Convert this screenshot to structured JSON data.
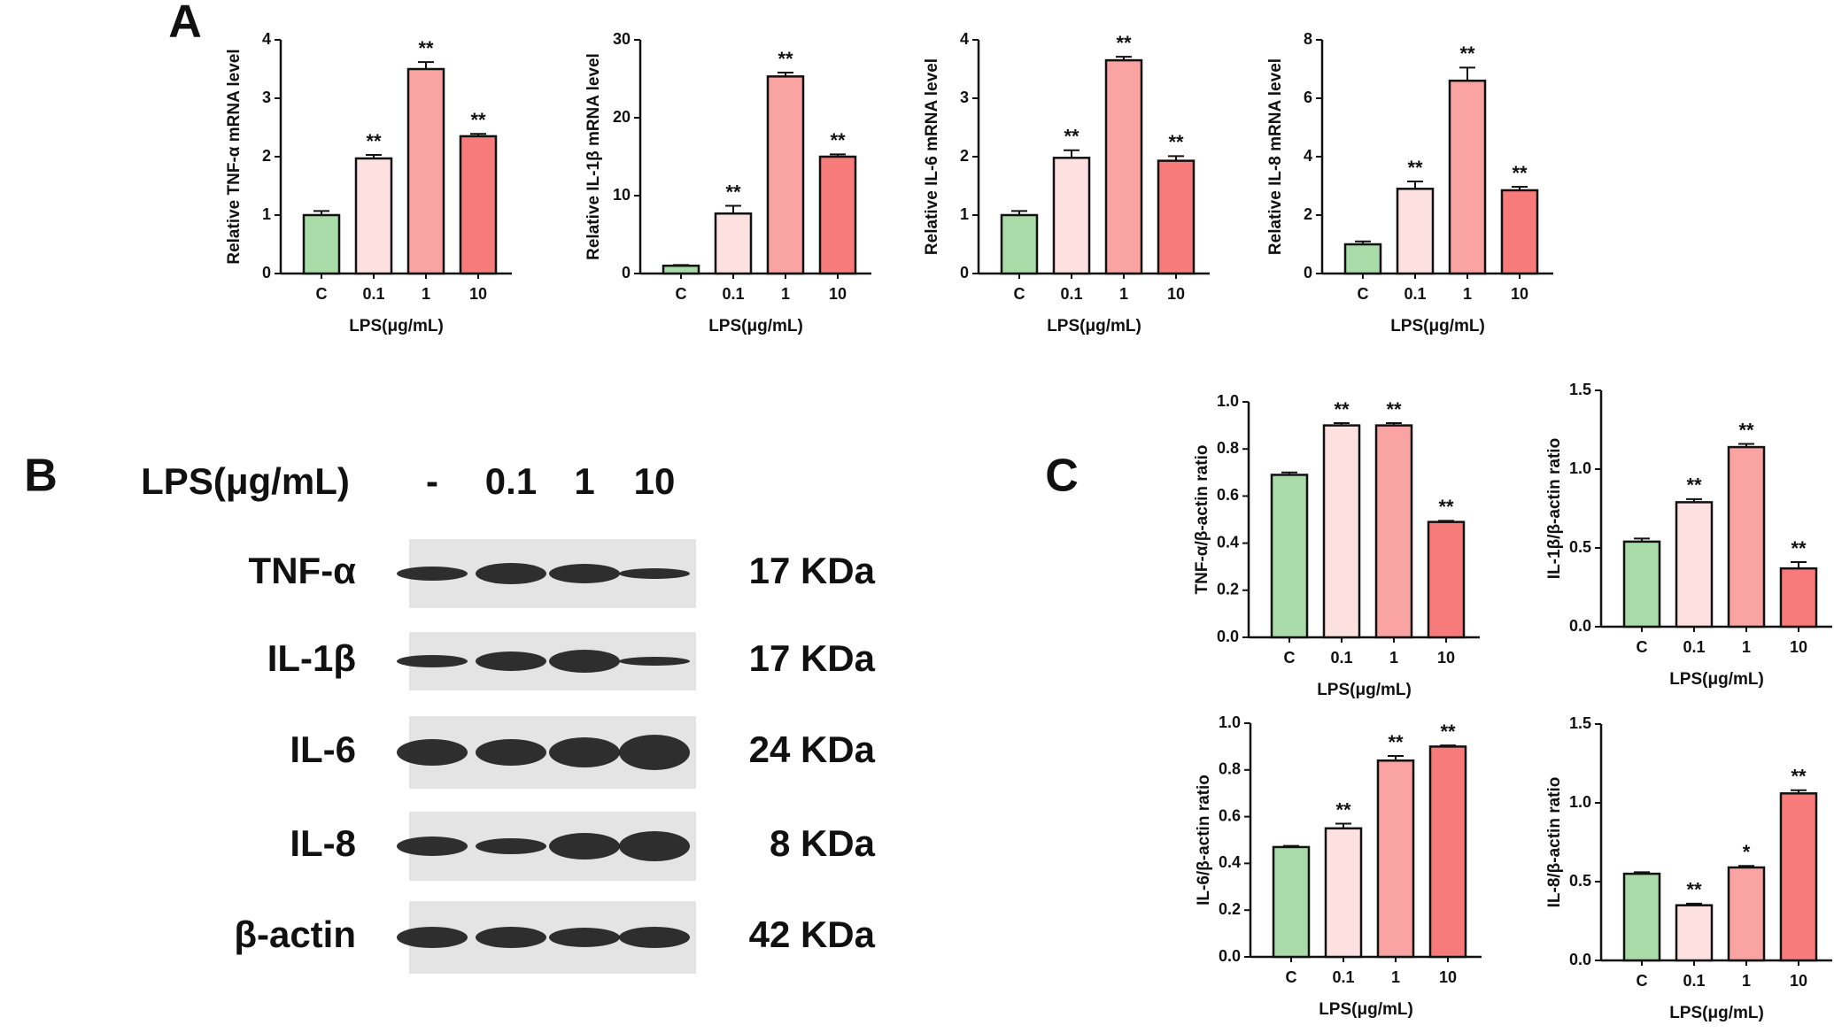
{
  "panels": [
    "A",
    "B",
    "C"
  ],
  "blot": {
    "lps_label": "LPS(μg/mL)",
    "lanes": [
      "-",
      "0.1",
      "1",
      "10"
    ],
    "rows": [
      {
        "protein": "TNF-α",
        "size": "17 KDa"
      },
      {
        "protein": "IL-1β",
        "size": "17 KDa"
      },
      {
        "protein": "IL-6",
        "size": "24 KDa"
      },
      {
        "protein": "IL-8",
        "size": "8 KDa"
      },
      {
        "protein": "β-actin",
        "size": "42 KDa"
      }
    ]
  },
  "chart_data": [
    {
      "type": "bar",
      "ylabel": "Relative TNF-α mRNA level",
      "xlabel": "LPS(μg/mL)",
      "categories": [
        "C",
        "0.1",
        "1",
        "10"
      ],
      "values": [
        1.0,
        1.97,
        3.5,
        2.35
      ],
      "errors": [
        0.07,
        0.06,
        0.12,
        0.04
      ],
      "annotations": [
        null,
        "**",
        "**",
        "**"
      ],
      "colors": [
        "#a8dba8",
        "#fde0e0",
        "#f9a3a3",
        "#f77b7b"
      ],
      "ylim": [
        0,
        4
      ],
      "yticks": [
        0,
        1,
        2,
        3,
        4
      ]
    },
    {
      "type": "bar",
      "ylabel": "Relative IL-1β mRNA level",
      "xlabel": "LPS(μg/mL)",
      "categories": [
        "C",
        "0.1",
        "1",
        "10"
      ],
      "values": [
        1.0,
        7.7,
        25.3,
        15.0
      ],
      "errors": [
        0.1,
        1.0,
        0.5,
        0.3
      ],
      "annotations": [
        null,
        "**",
        "**",
        "**"
      ],
      "colors": [
        "#a8dba8",
        "#fde0e0",
        "#f9a3a3",
        "#f77b7b"
      ],
      "ylim": [
        0,
        30
      ],
      "yticks": [
        0,
        10,
        20,
        30
      ]
    },
    {
      "type": "bar",
      "ylabel": "Relative IL-6 mRNA level",
      "xlabel": "LPS(μg/mL)",
      "categories": [
        "C",
        "0.1",
        "1",
        "10"
      ],
      "values": [
        1.0,
        1.98,
        3.65,
        1.93
      ],
      "errors": [
        0.07,
        0.13,
        0.06,
        0.08
      ],
      "annotations": [
        null,
        "**",
        "**",
        "**"
      ],
      "colors": [
        "#a8dba8",
        "#fde0e0",
        "#f9a3a3",
        "#f77b7b"
      ],
      "ylim": [
        0,
        4
      ],
      "yticks": [
        0,
        1,
        2,
        3,
        4
      ]
    },
    {
      "type": "bar",
      "ylabel": "Relative IL-8 mRNA level",
      "xlabel": "LPS(μg/mL)",
      "categories": [
        "C",
        "0.1",
        "1",
        "10"
      ],
      "values": [
        1.0,
        2.9,
        6.6,
        2.85
      ],
      "errors": [
        0.1,
        0.25,
        0.45,
        0.12
      ],
      "annotations": [
        null,
        "**",
        "**",
        "**"
      ],
      "colors": [
        "#a8dba8",
        "#fde0e0",
        "#f9a3a3",
        "#f77b7b"
      ],
      "ylim": [
        0,
        8
      ],
      "yticks": [
        0,
        2,
        4,
        6,
        8
      ]
    },
    {
      "type": "bar",
      "ylabel": "TNF-α/β-actin ratio",
      "xlabel": "LPS(μg/mL)",
      "categories": [
        "C",
        "0.1",
        "1",
        "10"
      ],
      "values": [
        0.69,
        0.9,
        0.9,
        0.49
      ],
      "errors": [
        0.01,
        0.01,
        0.01,
        0.005
      ],
      "annotations": [
        null,
        "**",
        "**",
        "**"
      ],
      "colors": [
        "#a8dba8",
        "#fde0e0",
        "#f9a3a3",
        "#f77b7b"
      ],
      "ylim": [
        0,
        1
      ],
      "yticks": [
        {
          "value": 0,
          "label": "0.0"
        },
        0.2,
        0.4,
        0.6,
        0.8,
        {
          "value": 1,
          "label": "1.0"
        }
      ]
    },
    {
      "type": "bar",
      "ylabel": "IL-1β/β-actin ratio",
      "xlabel": "LPS(μg/mL)",
      "categories": [
        "C",
        "0.1",
        "1",
        "10"
      ],
      "values": [
        0.54,
        0.79,
        1.14,
        0.37
      ],
      "errors": [
        0.02,
        0.02,
        0.02,
        0.04
      ],
      "annotations": [
        null,
        "**",
        "**",
        "**"
      ],
      "colors": [
        "#a8dba8",
        "#fde0e0",
        "#f9a3a3",
        "#f77b7b"
      ],
      "ylim": [
        0,
        1.5
      ],
      "yticks": [
        {
          "value": 0,
          "label": "0.0"
        },
        0.5,
        {
          "value": 1,
          "label": "1.0"
        },
        1.5
      ]
    },
    {
      "type": "bar",
      "ylabel": "IL-6/β-actin ratio",
      "xlabel": "LPS(μg/mL)",
      "categories": [
        "C",
        "0.1",
        "1",
        "10"
      ],
      "values": [
        0.47,
        0.55,
        0.84,
        0.9
      ],
      "errors": [
        0.005,
        0.02,
        0.02,
        0.005
      ],
      "annotations": [
        null,
        "**",
        "**",
        "**"
      ],
      "colors": [
        "#a8dba8",
        "#fde0e0",
        "#f9a3a3",
        "#f77b7b"
      ],
      "ylim": [
        0,
        1
      ],
      "yticks": [
        {
          "value": 0,
          "label": "0.0"
        },
        0.2,
        0.4,
        0.6,
        0.8,
        {
          "value": 1,
          "label": "1.0"
        }
      ]
    },
    {
      "type": "bar",
      "ylabel": "IL-8/β-actin ratio",
      "xlabel": "LPS(μg/mL)",
      "categories": [
        "C",
        "0.1",
        "1",
        "10"
      ],
      "values": [
        0.55,
        0.35,
        0.59,
        1.06
      ],
      "errors": [
        0.01,
        0.01,
        0.01,
        0.02
      ],
      "annotations": [
        null,
        "**",
        "*",
        "**"
      ],
      "colors": [
        "#a8dba8",
        "#fde0e0",
        "#f9a3a3",
        "#f77b7b"
      ],
      "ylim": [
        0,
        1.5
      ],
      "yticks": [
        {
          "value": 0,
          "label": "0.0"
        },
        0.5,
        {
          "value": 1,
          "label": "1.0"
        },
        1.5
      ]
    }
  ]
}
